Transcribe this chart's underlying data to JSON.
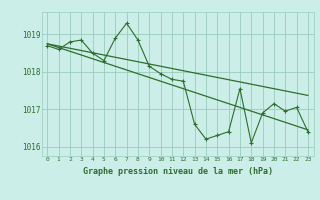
{
  "title": "Graphe pression niveau de la mer (hPa)",
  "bg_color": "#cceee8",
  "grid_color": "#99ccbb",
  "line_color": "#2d6e2d",
  "x_hours": [
    0,
    1,
    2,
    3,
    4,
    5,
    6,
    7,
    8,
    9,
    10,
    11,
    12,
    13,
    14,
    15,
    16,
    17,
    18,
    19,
    20,
    21,
    22,
    23
  ],
  "line1": [
    1018.7,
    1018.6,
    1018.8,
    1018.85,
    1018.5,
    1018.3,
    1018.9,
    1019.3,
    1018.85,
    1018.15,
    1017.95,
    1017.8,
    1017.75,
    1016.6,
    1016.2,
    1016.3,
    1016.4,
    1017.55,
    1016.1,
    1016.9,
    1017.15,
    1016.95,
    1017.05,
    1016.4
  ],
  "line2": [
    1018.75,
    1018.69,
    1018.63,
    1018.57,
    1018.51,
    1018.45,
    1018.39,
    1018.33,
    1018.27,
    1018.21,
    1018.15,
    1018.09,
    1018.03,
    1017.97,
    1017.91,
    1017.85,
    1017.79,
    1017.73,
    1017.67,
    1017.61,
    1017.55,
    1017.49,
    1017.43,
    1017.37
  ],
  "line3": [
    1018.75,
    1018.65,
    1018.55,
    1018.45,
    1018.35,
    1018.25,
    1018.15,
    1018.05,
    1017.95,
    1017.85,
    1017.75,
    1017.65,
    1017.55,
    1017.45,
    1017.35,
    1017.25,
    1017.15,
    1017.05,
    1016.95,
    1016.85,
    1016.75,
    1016.65,
    1016.55,
    1016.45
  ],
  "ylim": [
    1015.75,
    1019.6
  ],
  "yticks": [
    1016,
    1017,
    1018,
    1019
  ],
  "xticks": [
    0,
    1,
    2,
    3,
    4,
    5,
    6,
    7,
    8,
    9,
    10,
    11,
    12,
    13,
    14,
    15,
    16,
    17,
    18,
    19,
    20,
    21,
    22,
    23
  ]
}
